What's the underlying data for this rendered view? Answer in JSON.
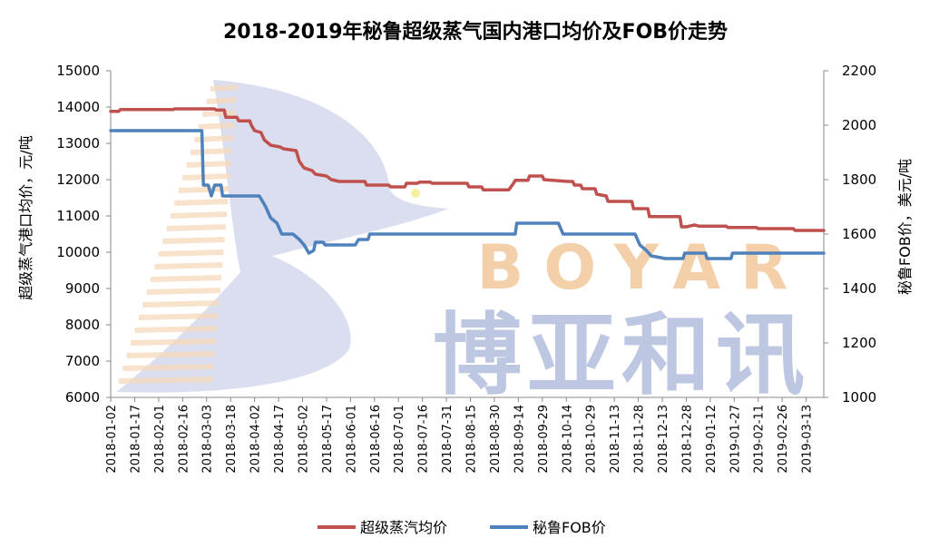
{
  "chart_data": {
    "type": "line",
    "title": "2018-2019年秘鲁超级蒸气国内港口均价及FOB价走势",
    "y_left_label": "超级蒸气港口均价，元/吨",
    "y_right_label": "秘鲁FOB价，美元/吨",
    "y_left_range": [
      6000,
      15000
    ],
    "y_left_ticks": [
      6000,
      7000,
      8000,
      9000,
      10000,
      11000,
      12000,
      13000,
      14000,
      15000
    ],
    "y_right_range": [
      1000,
      2200
    ],
    "y_right_ticks": [
      1000,
      1200,
      1400,
      1600,
      1800,
      2000,
      2200
    ],
    "x_ticks": [
      "2018-01-02",
      "2018-01-17",
      "2018-02-01",
      "2018-02-16",
      "2018-03-03",
      "2018-03-18",
      "2018-04-02",
      "2018-04-17",
      "2018-05-02",
      "2018-05-17",
      "2018-06-01",
      "2018-06-16",
      "2018-07-01",
      "2018-07-16",
      "2018-07-31",
      "2018-08-15",
      "2018-08-30",
      "2018-09-14",
      "2018-09-29",
      "2018-10-14",
      "2018-10-29",
      "2018-11-13",
      "2018-11-28",
      "2018-12-13",
      "2018-12-28",
      "2019-01-12",
      "2019-01-27",
      "2019-02-11",
      "2019-02-26",
      "2019-03-13"
    ],
    "x_range": [
      "2018-01-02",
      "2019-03-24"
    ],
    "grid": false,
    "legend_position": "bottom",
    "series": [
      {
        "name": "超级蒸汽均价",
        "axis": "left",
        "color": "#C0504D",
        "points": [
          [
            "2018-01-02",
            13880
          ],
          [
            "2018-01-07",
            13880
          ],
          [
            "2018-01-08",
            13930
          ],
          [
            "2018-02-10",
            13930
          ],
          [
            "2018-02-11",
            13950
          ],
          [
            "2018-03-08",
            13950
          ],
          [
            "2018-03-09",
            13920
          ],
          [
            "2018-03-14",
            13920
          ],
          [
            "2018-03-15",
            13720
          ],
          [
            "2018-03-22",
            13720
          ],
          [
            "2018-03-23",
            13620
          ],
          [
            "2018-03-30",
            13620
          ],
          [
            "2018-03-31",
            13500
          ],
          [
            "2018-04-02",
            13350
          ],
          [
            "2018-04-06",
            13300
          ],
          [
            "2018-04-08",
            13100
          ],
          [
            "2018-04-12",
            12950
          ],
          [
            "2018-04-18",
            12900
          ],
          [
            "2018-04-20",
            12850
          ],
          [
            "2018-04-28",
            12800
          ],
          [
            "2018-04-30",
            12500
          ],
          [
            "2018-05-03",
            12320
          ],
          [
            "2018-05-08",
            12250
          ],
          [
            "2018-05-10",
            12150
          ],
          [
            "2018-05-17",
            12100
          ],
          [
            "2018-05-20",
            12000
          ],
          [
            "2018-05-25",
            11950
          ],
          [
            "2018-06-01",
            11950
          ],
          [
            "2018-06-10",
            11950
          ],
          [
            "2018-06-11",
            11850
          ],
          [
            "2018-06-25",
            11850
          ],
          [
            "2018-06-26",
            11800
          ],
          [
            "2018-07-05",
            11800
          ],
          [
            "2018-07-06",
            11900
          ],
          [
            "2018-07-13",
            11900
          ],
          [
            "2018-07-14",
            11930
          ],
          [
            "2018-07-21",
            11930
          ],
          [
            "2018-07-22",
            11900
          ],
          [
            "2018-08-13",
            11900
          ],
          [
            "2018-08-14",
            11800
          ],
          [
            "2018-08-22",
            11800
          ],
          [
            "2018-08-23",
            11720
          ],
          [
            "2018-09-08",
            11720
          ],
          [
            "2018-09-11",
            11900
          ],
          [
            "2018-09-12",
            11980
          ],
          [
            "2018-09-20",
            11980
          ],
          [
            "2018-09-21",
            12100
          ],
          [
            "2018-09-29",
            12100
          ],
          [
            "2018-09-30",
            12000
          ],
          [
            "2018-10-15",
            11950
          ],
          [
            "2018-10-18",
            11950
          ],
          [
            "2018-10-19",
            11850
          ],
          [
            "2018-10-23",
            11850
          ],
          [
            "2018-10-24",
            11750
          ],
          [
            "2018-11-01",
            11750
          ],
          [
            "2018-11-02",
            11600
          ],
          [
            "2018-11-08",
            11550
          ],
          [
            "2018-11-09",
            11400
          ],
          [
            "2018-11-24",
            11400
          ],
          [
            "2018-11-25",
            11200
          ],
          [
            "2018-12-04",
            11200
          ],
          [
            "2018-12-05",
            10980
          ],
          [
            "2018-12-24",
            10980
          ],
          [
            "2018-12-25",
            10700
          ],
          [
            "2018-12-28",
            10700
          ],
          [
            "2019-01-02",
            10750
          ],
          [
            "2019-01-05",
            10720
          ],
          [
            "2019-01-22",
            10720
          ],
          [
            "2019-01-23",
            10680
          ],
          [
            "2019-02-10",
            10680
          ],
          [
            "2019-02-11",
            10650
          ],
          [
            "2019-03-05",
            10650
          ],
          [
            "2019-03-06",
            10600
          ],
          [
            "2019-03-24",
            10600
          ]
        ]
      },
      {
        "name": "秘鲁FOB价",
        "axis": "right",
        "color": "#4F81BD",
        "points": [
          [
            "2018-01-02",
            1980
          ],
          [
            "2018-02-28",
            1980
          ],
          [
            "2018-03-01",
            1780
          ],
          [
            "2018-03-04",
            1780
          ],
          [
            "2018-03-06",
            1740
          ],
          [
            "2018-03-08",
            1780
          ],
          [
            "2018-03-12",
            1780
          ],
          [
            "2018-03-13",
            1740
          ],
          [
            "2018-04-05",
            1740
          ],
          [
            "2018-04-09",
            1700
          ],
          [
            "2018-04-12",
            1660
          ],
          [
            "2018-04-16",
            1640
          ],
          [
            "2018-04-19",
            1600
          ],
          [
            "2018-04-26",
            1600
          ],
          [
            "2018-04-30",
            1580
          ],
          [
            "2018-05-03",
            1560
          ],
          [
            "2018-05-06",
            1530
          ],
          [
            "2018-05-09",
            1540
          ],
          [
            "2018-05-10",
            1570
          ],
          [
            "2018-05-15",
            1570
          ],
          [
            "2018-05-16",
            1560
          ],
          [
            "2018-06-04",
            1560
          ],
          [
            "2018-06-06",
            1580
          ],
          [
            "2018-06-12",
            1580
          ],
          [
            "2018-06-13",
            1600
          ],
          [
            "2018-09-12",
            1600
          ],
          [
            "2018-09-13",
            1640
          ],
          [
            "2018-10-09",
            1640
          ],
          [
            "2018-10-12",
            1600
          ],
          [
            "2018-11-26",
            1600
          ],
          [
            "2018-11-29",
            1560
          ],
          [
            "2018-12-03",
            1540
          ],
          [
            "2018-12-06",
            1520
          ],
          [
            "2018-12-15",
            1510
          ],
          [
            "2018-12-26",
            1510
          ],
          [
            "2018-12-27",
            1530
          ],
          [
            "2019-01-09",
            1530
          ],
          [
            "2019-01-10",
            1510
          ],
          [
            "2019-01-25",
            1510
          ],
          [
            "2019-01-26",
            1530
          ],
          [
            "2019-03-24",
            1530
          ]
        ]
      }
    ]
  },
  "watermark": {
    "latin": "BOYAR",
    "chinese": "博亚和讯",
    "latin_color": "#F3CFAA",
    "chinese_color": "#B8C1DE"
  }
}
